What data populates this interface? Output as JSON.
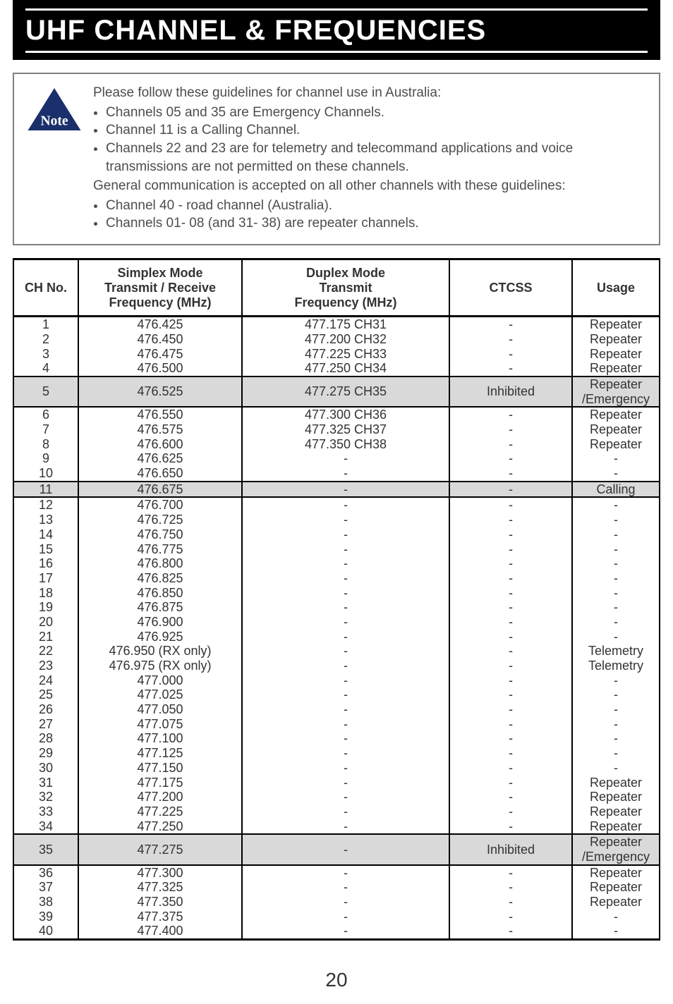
{
  "banner": {
    "title": "UHF CHANNEL & FREQUENCIES"
  },
  "note": {
    "intro": "Please follow these guidelines for channel use in Australia:",
    "bullets1": [
      "Channels 05 and 35 are Emergency Channels.",
      "Channel 11 is a Calling Channel.",
      "Channels 22 and 23 are for telemetry and telecommand applications and voice transmissions are not permitted on these channels."
    ],
    "mid": "General communication is accepted on all other channels with these guidelines:",
    "bullets2": [
      "Channel 40 - road channel (Australia).",
      "Channels 01- 08 (and 31- 38) are repeater channels."
    ]
  },
  "table": {
    "headers": {
      "ch": "CH No.",
      "simplex1": "Simplex Mode",
      "simplex2": "Transmit / Receive",
      "simplex3": "Frequency (MHz)",
      "duplex1": "Duplex Mode",
      "duplex2": "Transmit",
      "duplex3": "Frequency (MHz)",
      "ctcss": "CTCSS",
      "usage": "Usage"
    },
    "rows": [
      {
        "ch": "1",
        "simplex": "476.425",
        "duplex": "477.175 CH31",
        "ctcss": "-",
        "usage": "Repeater",
        "top": true,
        "hl": false
      },
      {
        "ch": "2",
        "simplex": "476.450",
        "duplex": "477.200 CH32",
        "ctcss": "-",
        "usage": "Repeater",
        "top": false,
        "hl": false
      },
      {
        "ch": "3",
        "simplex": "476.475",
        "duplex": "477.225 CH33",
        "ctcss": "-",
        "usage": "Repeater",
        "top": false,
        "hl": false
      },
      {
        "ch": "4",
        "simplex": "476.500",
        "duplex": "477.250 CH34",
        "ctcss": "-",
        "usage": "Repeater",
        "top": false,
        "hl": false
      },
      {
        "ch": "5",
        "simplex": "476.525",
        "duplex": "477.275 CH35",
        "ctcss": "Inhibited",
        "usage": "Repeater /Emergency",
        "top": true,
        "hl": true
      },
      {
        "ch": "6",
        "simplex": "476.550",
        "duplex": "477.300 CH36",
        "ctcss": "-",
        "usage": "Repeater",
        "top": true,
        "hl": false
      },
      {
        "ch": "7",
        "simplex": "476.575",
        "duplex": "477.325 CH37",
        "ctcss": "-",
        "usage": "Repeater",
        "top": false,
        "hl": false
      },
      {
        "ch": "8",
        "simplex": "476.600",
        "duplex": "477.350 CH38",
        "ctcss": "-",
        "usage": "Repeater",
        "top": false,
        "hl": false
      },
      {
        "ch": "9",
        "simplex": "476.625",
        "duplex": "-",
        "ctcss": "-",
        "usage": "-",
        "top": false,
        "hl": false
      },
      {
        "ch": "10",
        "simplex": "476.650",
        "duplex": "-",
        "ctcss": "-",
        "usage": "-",
        "top": false,
        "hl": false
      },
      {
        "ch": "11",
        "simplex": "476.675",
        "duplex": "-",
        "ctcss": "-",
        "usage": "Calling",
        "top": true,
        "hl": true
      },
      {
        "ch": "12",
        "simplex": "476.700",
        "duplex": "-",
        "ctcss": "-",
        "usage": "-",
        "top": true,
        "hl": false
      },
      {
        "ch": "13",
        "simplex": "476.725",
        "duplex": "-",
        "ctcss": "-",
        "usage": "-",
        "top": false,
        "hl": false
      },
      {
        "ch": "14",
        "simplex": "476.750",
        "duplex": "-",
        "ctcss": "-",
        "usage": "-",
        "top": false,
        "hl": false
      },
      {
        "ch": "15",
        "simplex": "476.775",
        "duplex": "-",
        "ctcss": "-",
        "usage": "-",
        "top": false,
        "hl": false
      },
      {
        "ch": "16",
        "simplex": "476.800",
        "duplex": "-",
        "ctcss": "-",
        "usage": "-",
        "top": false,
        "hl": false
      },
      {
        "ch": "17",
        "simplex": "476.825",
        "duplex": "-",
        "ctcss": "-",
        "usage": "-",
        "top": false,
        "hl": false
      },
      {
        "ch": "18",
        "simplex": "476.850",
        "duplex": "-",
        "ctcss": "-",
        "usage": "-",
        "top": false,
        "hl": false
      },
      {
        "ch": "19",
        "simplex": "476.875",
        "duplex": "-",
        "ctcss": "-",
        "usage": "-",
        "top": false,
        "hl": false
      },
      {
        "ch": "20",
        "simplex": "476.900",
        "duplex": "-",
        "ctcss": "-",
        "usage": "-",
        "top": false,
        "hl": false
      },
      {
        "ch": "21",
        "simplex": "476.925",
        "duplex": "-",
        "ctcss": "-",
        "usage": "-",
        "top": false,
        "hl": false
      },
      {
        "ch": "22",
        "simplex": "476.950 (RX only)",
        "duplex": "-",
        "ctcss": "-",
        "usage": "Telemetry",
        "top": false,
        "hl": false
      },
      {
        "ch": "23",
        "simplex": "476.975 (RX only)",
        "duplex": "-",
        "ctcss": "-",
        "usage": "Telemetry",
        "top": false,
        "hl": false
      },
      {
        "ch": "24",
        "simplex": "477.000",
        "duplex": "-",
        "ctcss": "-",
        "usage": "-",
        "top": false,
        "hl": false
      },
      {
        "ch": "25",
        "simplex": "477.025",
        "duplex": "-",
        "ctcss": "-",
        "usage": "-",
        "top": false,
        "hl": false
      },
      {
        "ch": "26",
        "simplex": "477.050",
        "duplex": "-",
        "ctcss": "-",
        "usage": "-",
        "top": false,
        "hl": false
      },
      {
        "ch": "27",
        "simplex": "477.075",
        "duplex": "-",
        "ctcss": "-",
        "usage": "-",
        "top": false,
        "hl": false
      },
      {
        "ch": "28",
        "simplex": "477.100",
        "duplex": "-",
        "ctcss": "-",
        "usage": "-",
        "top": false,
        "hl": false
      },
      {
        "ch": "29",
        "simplex": "477.125",
        "duplex": "-",
        "ctcss": "-",
        "usage": "-",
        "top": false,
        "hl": false
      },
      {
        "ch": "30",
        "simplex": "477.150",
        "duplex": "-",
        "ctcss": "-",
        "usage": "-",
        "top": false,
        "hl": false
      },
      {
        "ch": "31",
        "simplex": "477.175",
        "duplex": "-",
        "ctcss": "-",
        "usage": "Repeater",
        "top": false,
        "hl": false
      },
      {
        "ch": "32",
        "simplex": "477.200",
        "duplex": "-",
        "ctcss": "-",
        "usage": "Repeater",
        "top": false,
        "hl": false
      },
      {
        "ch": "33",
        "simplex": "477.225",
        "duplex": "-",
        "ctcss": "-",
        "usage": "Repeater",
        "top": false,
        "hl": false
      },
      {
        "ch": "34",
        "simplex": "477.250",
        "duplex": "-",
        "ctcss": "-",
        "usage": "Repeater",
        "top": false,
        "hl": false
      },
      {
        "ch": "35",
        "simplex": "477.275",
        "duplex": "-",
        "ctcss": "Inhibited",
        "usage": "Repeater /Emergency",
        "top": true,
        "hl": true
      },
      {
        "ch": "36",
        "simplex": "477.300",
        "duplex": "-",
        "ctcss": "-",
        "usage": "Repeater",
        "top": true,
        "hl": false
      },
      {
        "ch": "37",
        "simplex": "477.325",
        "duplex": "-",
        "ctcss": "-",
        "usage": "Repeater",
        "top": false,
        "hl": false
      },
      {
        "ch": "38",
        "simplex": "477.350",
        "duplex": "-",
        "ctcss": "-",
        "usage": "Repeater",
        "top": false,
        "hl": false
      },
      {
        "ch": "39",
        "simplex": "477.375",
        "duplex": "-",
        "ctcss": "-",
        "usage": "-",
        "top": false,
        "hl": false
      },
      {
        "ch": "40",
        "simplex": "477.400",
        "duplex": "-",
        "ctcss": "-",
        "usage": "-",
        "top": false,
        "hl": false
      }
    ]
  },
  "page": {
    "number": "20"
  },
  "colors": {
    "banner_bg": "#000000",
    "banner_fg": "#ffffff",
    "note_border": "#808080",
    "note_text": "#4d4d4d",
    "row_highlight": "#d9d9d9",
    "body_text": "#333333"
  }
}
